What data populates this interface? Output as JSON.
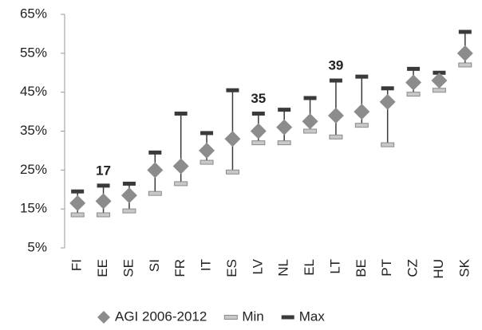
{
  "chart_data": {
    "type": "range",
    "categories": [
      "FI",
      "EE",
      "SE",
      "SI",
      "FR",
      "IT",
      "ES",
      "LV",
      "NL",
      "EL",
      "LT",
      "BE",
      "PT",
      "CZ",
      "HU",
      "SK"
    ],
    "series": [
      {
        "name": "AGI 2006-2012",
        "color": "#8c8c8c",
        "values": [
          16.5,
          17,
          18.5,
          25,
          26,
          30,
          33,
          35,
          36,
          37.5,
          39,
          40,
          42.5,
          47.5,
          48,
          55
        ],
        "value_labels": [
          null,
          "17",
          null,
          null,
          null,
          null,
          null,
          "35",
          null,
          null,
          "39",
          null,
          null,
          null,
          null,
          null
        ]
      },
      {
        "name": "Min",
        "color": "#c8c8c8",
        "values": [
          13.5,
          13.5,
          14.5,
          19,
          21.5,
          27,
          24.5,
          32,
          32,
          35,
          33.5,
          36.5,
          31.5,
          44.5,
          45.5,
          52
        ]
      },
      {
        "name": "Max",
        "color": "#3a3a3a",
        "values": [
          19.5,
          21,
          21.5,
          29.5,
          39.5,
          34.5,
          45.5,
          39.5,
          40.5,
          43.5,
          48,
          49,
          46,
          51,
          50,
          60.5
        ]
      }
    ],
    "ylim": [
      5,
      65
    ],
    "yticks": [
      {
        "value": 5,
        "label": "5%"
      },
      {
        "value": 15,
        "label": "15%"
      },
      {
        "value": 25,
        "label": "25%"
      },
      {
        "value": 35,
        "label": "35%"
      },
      {
        "value": 45,
        "label": "45%"
      },
      {
        "value": 55,
        "label": "55%"
      },
      {
        "value": 65,
        "label": "65%"
      }
    ],
    "grid": false
  }
}
